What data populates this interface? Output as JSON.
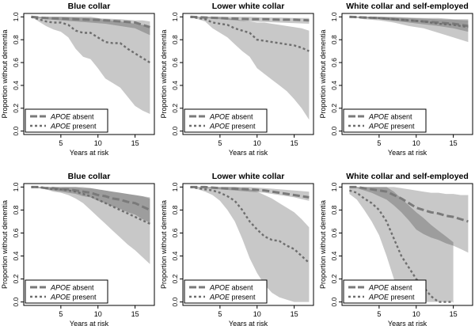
{
  "colors": {
    "band": "#c8c8c8",
    "band_overlap": "#8f8f8f",
    "absent_line": "#7a7a7a",
    "present_line": "#6e6e6e",
    "axis": "#000000"
  },
  "chart_data": [
    {
      "type": "line",
      "title": "Blue collar",
      "xlabel": "Years at risk",
      "ylabel": "Proportion without dementia",
      "xlim": [
        0,
        17.6
      ],
      "ylim": [
        -0.03,
        1.03
      ],
      "xticks": [
        5,
        10,
        15
      ],
      "yticks": [
        0.0,
        0.2,
        0.4,
        0.6,
        0.8,
        1.0
      ],
      "ytick_labels": [
        "0.0",
        "0.2",
        "0.4",
        "0.6",
        "0.8",
        "1.0"
      ],
      "legend": {
        "position": "bottom-left",
        "entries": [
          {
            "italic": "APOE",
            "text": " absent"
          },
          {
            "italic": "APOE",
            "text": " present"
          }
        ]
      },
      "series": [
        {
          "name": "APOE absent",
          "style": "dashed-long",
          "x": [
            1,
            3,
            5,
            7,
            9,
            11,
            13,
            15,
            16,
            17
          ],
          "values": [
            1.0,
            0.99,
            0.985,
            0.98,
            0.975,
            0.97,
            0.96,
            0.95,
            0.93,
            0.91
          ],
          "ci_low": [
            1.0,
            0.98,
            0.97,
            0.96,
            0.95,
            0.94,
            0.92,
            0.9,
            0.87,
            0.84
          ],
          "ci_high": [
            1.0,
            1.0,
            1.0,
            0.995,
            0.99,
            0.985,
            0.98,
            0.97,
            0.97,
            0.96
          ]
        },
        {
          "name": "APOE present",
          "style": "dotted",
          "x": [
            1,
            2,
            3,
            4,
            5,
            6,
            7,
            8,
            9,
            10,
            11,
            12,
            13,
            14,
            15,
            16,
            17
          ],
          "values": [
            1.0,
            0.98,
            0.96,
            0.95,
            0.95,
            0.93,
            0.88,
            0.86,
            0.86,
            0.82,
            0.78,
            0.77,
            0.77,
            0.72,
            0.68,
            0.64,
            0.6
          ],
          "ci_low": [
            1.0,
            0.96,
            0.92,
            0.89,
            0.87,
            0.82,
            0.72,
            0.65,
            0.63,
            0.55,
            0.46,
            0.42,
            0.38,
            0.3,
            0.22,
            0.18,
            0.15
          ],
          "ci_high": [
            1.0,
            1.0,
            1.0,
            1.0,
            1.0,
            1.0,
            1.0,
            1.0,
            1.0,
            0.99,
            0.97,
            0.97,
            0.96,
            0.95,
            0.94,
            0.93,
            0.92
          ]
        }
      ]
    },
    {
      "type": "line",
      "title": "Lower white collar",
      "xlabel": "Years at risk",
      "ylabel": "Proportion without dementia",
      "xlim": [
        0,
        17.6
      ],
      "ylim": [
        -0.03,
        1.03
      ],
      "xticks": [
        5,
        10,
        15
      ],
      "yticks": [
        0.0,
        0.2,
        0.4,
        0.6,
        0.8,
        1.0
      ],
      "ytick_labels": [
        "0.0",
        "0.2",
        "0.4",
        "0.6",
        "0.8",
        "1.0"
      ],
      "legend": {
        "position": "bottom-left",
        "entries": [
          {
            "italic": "APOE",
            "text": " absent"
          },
          {
            "italic": "APOE",
            "text": " present"
          }
        ]
      },
      "series": [
        {
          "name": "APOE absent",
          "style": "dashed-long",
          "x": [
            1,
            3,
            5,
            7,
            9,
            11,
            13,
            15,
            17
          ],
          "values": [
            1.0,
            0.995,
            0.99,
            0.985,
            0.98,
            0.98,
            0.975,
            0.975,
            0.97
          ],
          "ci_low": [
            1.0,
            0.99,
            0.98,
            0.97,
            0.96,
            0.955,
            0.95,
            0.945,
            0.94
          ],
          "ci_high": [
            1.0,
            1.0,
            1.0,
            1.0,
            1.0,
            0.995,
            0.995,
            0.99,
            0.99
          ]
        },
        {
          "name": "APOE present",
          "style": "dotted",
          "x": [
            1,
            2,
            3,
            4,
            5,
            6,
            7,
            8,
            9,
            10,
            11,
            12,
            13,
            14,
            15,
            16,
            17
          ],
          "values": [
            1.0,
            0.99,
            0.98,
            0.95,
            0.94,
            0.93,
            0.9,
            0.88,
            0.86,
            0.8,
            0.79,
            0.78,
            0.77,
            0.76,
            0.75,
            0.73,
            0.7
          ],
          "ci_low": [
            1.0,
            0.98,
            0.96,
            0.9,
            0.86,
            0.82,
            0.76,
            0.7,
            0.65,
            0.55,
            0.5,
            0.45,
            0.4,
            0.35,
            0.28,
            0.2,
            0.1
          ],
          "ci_high": [
            1.0,
            1.0,
            1.0,
            1.0,
            1.0,
            0.99,
            0.98,
            0.97,
            0.96,
            0.95,
            0.95,
            0.94,
            0.93,
            0.92,
            0.91,
            0.9,
            0.88
          ]
        }
      ]
    },
    {
      "type": "line",
      "title": "White collar and self-employed",
      "xlabel": "Years at risk",
      "ylabel": "Proportion without dementia",
      "xlim": [
        0,
        17.6
      ],
      "ylim": [
        -0.03,
        1.03
      ],
      "xticks": [
        5,
        10,
        15
      ],
      "yticks": [
        0.0,
        0.2,
        0.4,
        0.6,
        0.8,
        1.0
      ],
      "ytick_labels": [
        "0.0",
        "0.2",
        "0.4",
        "0.6",
        "0.8",
        "1.0"
      ],
      "legend": {
        "position": "bottom-left",
        "entries": [
          {
            "italic": "APOE",
            "text": " absent"
          },
          {
            "italic": "APOE",
            "text": " present"
          }
        ]
      },
      "series": [
        {
          "name": "APOE absent",
          "style": "dashed-long",
          "x": [
            1,
            3,
            5,
            7,
            9,
            11,
            13,
            15,
            17
          ],
          "values": [
            1.0,
            0.995,
            0.99,
            0.98,
            0.97,
            0.96,
            0.95,
            0.94,
            0.92
          ],
          "ci_low": [
            1.0,
            0.99,
            0.98,
            0.965,
            0.95,
            0.935,
            0.92,
            0.9,
            0.87
          ],
          "ci_high": [
            1.0,
            1.0,
            1.0,
            0.995,
            0.99,
            0.985,
            0.98,
            0.975,
            0.97
          ]
        },
        {
          "name": "APOE present",
          "style": "dotted",
          "x": [
            1,
            3,
            5,
            7,
            9,
            11,
            13,
            15,
            17
          ],
          "values": [
            1.0,
            0.995,
            0.99,
            0.98,
            0.97,
            0.96,
            0.94,
            0.93,
            0.91
          ],
          "ci_low": [
            1.0,
            0.98,
            0.97,
            0.95,
            0.92,
            0.9,
            0.86,
            0.82,
            0.78
          ],
          "ci_high": [
            1.0,
            1.0,
            1.0,
            1.0,
            0.995,
            0.99,
            0.99,
            0.98,
            0.98
          ]
        }
      ]
    },
    {
      "type": "line",
      "title": "Blue collar",
      "xlabel": "Years at risk",
      "ylabel": "Proportion without dementia",
      "xlim": [
        0,
        17.6
      ],
      "ylim": [
        -0.03,
        1.03
      ],
      "xticks": [
        5,
        10,
        15
      ],
      "yticks": [
        0.0,
        0.2,
        0.4,
        0.6,
        0.8,
        1.0
      ],
      "ytick_labels": [
        "0.0",
        "0.2",
        "0.4",
        "0.6",
        "0.8",
        "1.0"
      ],
      "legend": {
        "position": "bottom-left",
        "entries": [
          {
            "italic": "APOE",
            "text": " absent"
          },
          {
            "italic": "APOE",
            "text": " present"
          }
        ]
      },
      "series": [
        {
          "name": "APOE absent",
          "style": "dashed-long",
          "x": [
            1,
            2,
            3,
            4,
            5,
            6,
            7,
            8,
            9,
            10,
            11,
            12,
            13,
            14,
            15,
            16,
            17
          ],
          "values": [
            1.0,
            1.0,
            0.99,
            0.99,
            0.98,
            0.98,
            0.97,
            0.96,
            0.95,
            0.93,
            0.92,
            0.9,
            0.89,
            0.87,
            0.86,
            0.83,
            0.8
          ],
          "ci_low": [
            1.0,
            0.99,
            0.98,
            0.97,
            0.96,
            0.95,
            0.94,
            0.92,
            0.91,
            0.88,
            0.86,
            0.83,
            0.81,
            0.78,
            0.76,
            0.72,
            0.69
          ],
          "ci_high": [
            1.0,
            1.0,
            1.0,
            1.0,
            1.0,
            1.0,
            1.0,
            0.99,
            0.99,
            0.98,
            0.97,
            0.96,
            0.95,
            0.94,
            0.93,
            0.92,
            0.91
          ]
        },
        {
          "name": "APOE present",
          "style": "dotted",
          "x": [
            1,
            2,
            3,
            4,
            5,
            6,
            7,
            8,
            9,
            10,
            11,
            12,
            13,
            14,
            15,
            16,
            17
          ],
          "values": [
            1.0,
            1.0,
            0.99,
            0.98,
            0.98,
            0.97,
            0.96,
            0.94,
            0.92,
            0.89,
            0.86,
            0.83,
            0.8,
            0.77,
            0.74,
            0.71,
            0.68
          ],
          "ci_low": [
            1.0,
            0.99,
            0.98,
            0.96,
            0.95,
            0.93,
            0.9,
            0.86,
            0.8,
            0.74,
            0.68,
            0.62,
            0.56,
            0.5,
            0.45,
            0.39,
            0.33
          ],
          "ci_high": [
            1.0,
            1.0,
            1.0,
            1.0,
            1.0,
            1.0,
            1.0,
            1.0,
            0.99,
            0.98,
            0.97,
            0.96,
            0.95,
            0.94,
            0.93,
            0.92,
            0.9
          ]
        }
      ]
    },
    {
      "type": "line",
      "title": "Lower white collar",
      "xlabel": "Years at risk",
      "ylabel": "Proportion without dementia",
      "xlim": [
        0,
        17.6
      ],
      "ylim": [
        -0.03,
        1.03
      ],
      "xticks": [
        5,
        10,
        15
      ],
      "yticks": [
        0.0,
        0.2,
        0.4,
        0.6,
        0.8,
        1.0
      ],
      "ytick_labels": [
        "0.0",
        "0.2",
        "0.4",
        "0.6",
        "0.8",
        "1.0"
      ],
      "legend": {
        "position": "bottom-left",
        "entries": [
          {
            "italic": "APOE",
            "text": " absent"
          },
          {
            "italic": "APOE",
            "text": " present"
          }
        ]
      },
      "series": [
        {
          "name": "APOE absent",
          "style": "dashed-long",
          "x": [
            1,
            3,
            5,
            7,
            9,
            11,
            13,
            15,
            17
          ],
          "values": [
            1.0,
            1.0,
            0.99,
            0.985,
            0.98,
            0.97,
            0.95,
            0.93,
            0.91
          ],
          "ci_low": [
            1.0,
            0.99,
            0.98,
            0.97,
            0.96,
            0.95,
            0.93,
            0.91,
            0.88
          ],
          "ci_high": [
            1.0,
            1.0,
            1.0,
            1.0,
            1.0,
            0.99,
            0.98,
            0.97,
            0.96
          ]
        },
        {
          "name": "APOE present",
          "style": "dotted",
          "x": [
            1,
            2,
            3,
            4,
            5,
            6,
            7,
            8,
            9,
            10,
            11,
            12,
            13,
            14,
            15,
            16,
            17
          ],
          "values": [
            1.0,
            0.99,
            0.98,
            0.97,
            0.95,
            0.92,
            0.88,
            0.8,
            0.7,
            0.63,
            0.57,
            0.54,
            0.53,
            0.49,
            0.46,
            0.4,
            0.34
          ],
          "ci_low": [
            1.0,
            0.98,
            0.96,
            0.93,
            0.88,
            0.8,
            0.7,
            0.55,
            0.38,
            0.25,
            0.15,
            0.08,
            0.04,
            0.02,
            0.0,
            0.0,
            0.0
          ],
          "ci_high": [
            1.0,
            1.0,
            1.0,
            1.0,
            1.0,
            1.0,
            1.0,
            0.99,
            0.98,
            0.96,
            0.93,
            0.9,
            0.86,
            0.82,
            0.78,
            0.72,
            0.65
          ]
        }
      ]
    },
    {
      "type": "line",
      "title": "White collar and self-employed",
      "xlabel": "Years at risk",
      "ylabel": "Proportion without dementia",
      "xlim": [
        0,
        17.6
      ],
      "ylim": [
        -0.03,
        1.03
      ],
      "xticks": [
        5,
        10,
        15
      ],
      "yticks": [
        0.0,
        0.2,
        0.4,
        0.6,
        0.8,
        1.0
      ],
      "ytick_labels": [
        "0.0",
        "0.2",
        "0.4",
        "0.6",
        "0.8",
        "1.0"
      ],
      "legend": {
        "position": "bottom-left",
        "entries": [
          {
            "italic": "APOE",
            "text": " absent"
          },
          {
            "italic": "APOE",
            "text": " present"
          }
        ]
      },
      "series": [
        {
          "name": "APOE absent",
          "style": "dashed-long",
          "x": [
            1,
            2,
            3,
            4,
            5,
            6,
            7,
            8,
            9,
            10,
            11,
            12,
            13,
            14,
            15,
            16,
            17
          ],
          "values": [
            1.0,
            1.0,
            0.99,
            0.98,
            0.97,
            0.96,
            0.93,
            0.9,
            0.86,
            0.82,
            0.8,
            0.78,
            0.77,
            0.75,
            0.74,
            0.72,
            0.7
          ],
          "ci_low": [
            1.0,
            0.99,
            0.97,
            0.95,
            0.92,
            0.89,
            0.84,
            0.78,
            0.71,
            0.63,
            0.59,
            0.56,
            0.54,
            0.51,
            0.49,
            0.46,
            0.43
          ],
          "ci_high": [
            1.0,
            1.0,
            1.0,
            1.0,
            1.0,
            1.0,
            1.0,
            0.99,
            0.98,
            0.97,
            0.96,
            0.95,
            0.95,
            0.94,
            0.94,
            0.93,
            0.93
          ]
        },
        {
          "name": "APOE present",
          "style": "dotted",
          "x": [
            1,
            2,
            3,
            4,
            5,
            6,
            7,
            8,
            9,
            10,
            11,
            12,
            13,
            14,
            15
          ],
          "values": [
            0.97,
            0.95,
            0.9,
            0.86,
            0.8,
            0.7,
            0.55,
            0.4,
            0.3,
            0.2,
            0.13,
            0.05,
            0.0,
            0.0,
            0.0
          ],
          "ci_low": [
            0.94,
            0.89,
            0.8,
            0.7,
            0.58,
            0.4,
            0.2,
            0.0,
            0.0,
            0.0,
            0.0,
            0.0,
            0.0,
            0.0,
            0.0
          ],
          "ci_high": [
            1.0,
            1.0,
            1.0,
            1.0,
            1.0,
            1.0,
            0.96,
            0.9,
            0.84,
            0.78,
            0.73,
            0.67,
            0.62,
            0.57,
            0.52
          ]
        }
      ]
    }
  ]
}
